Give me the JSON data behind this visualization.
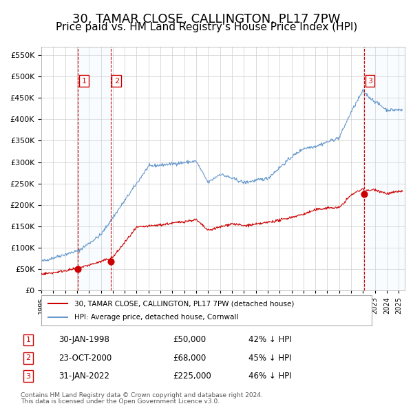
{
  "title": "30, TAMAR CLOSE, CALLINGTON, PL17 7PW",
  "subtitle": "Price paid vs. HM Land Registry's House Price Index (HPI)",
  "legend_line1": "30, TAMAR CLOSE, CALLINGTON, PL17 7PW (detached house)",
  "legend_line2": "HPI: Average price, detached house, Cornwall",
  "footer1": "Contains HM Land Registry data © Crown copyright and database right 2024.",
  "footer2": "This data is licensed under the Open Government Licence v3.0.",
  "table": [
    {
      "num": 1,
      "date": "30-JAN-1998",
      "price": "£50,000",
      "hpi": "42% ↓ HPI"
    },
    {
      "num": 2,
      "date": "23-OCT-2000",
      "price": "£68,000",
      "hpi": "45% ↓ HPI"
    },
    {
      "num": 3,
      "date": "31-JAN-2022",
      "price": "£225,000",
      "hpi": "46% ↓ HPI"
    }
  ],
  "sale_points": [
    {
      "date_num": 1998.08,
      "price": 50000,
      "label": "1"
    },
    {
      "date_num": 2000.81,
      "price": 68000,
      "label": "2"
    },
    {
      "date_num": 2022.08,
      "price": 225000,
      "label": "3"
    }
  ],
  "vline_dates": [
    1998.08,
    2000.81,
    2022.08
  ],
  "ylim": [
    0,
    570000
  ],
  "xlim_start": 1995.0,
  "xlim_end": 2025.5,
  "red_color": "#cc0000",
  "blue_color": "#6699cc",
  "shade_color": "#ddeeff",
  "background_color": "#ffffff",
  "grid_color": "#cccccc",
  "title_fontsize": 13,
  "subtitle_fontsize": 11
}
